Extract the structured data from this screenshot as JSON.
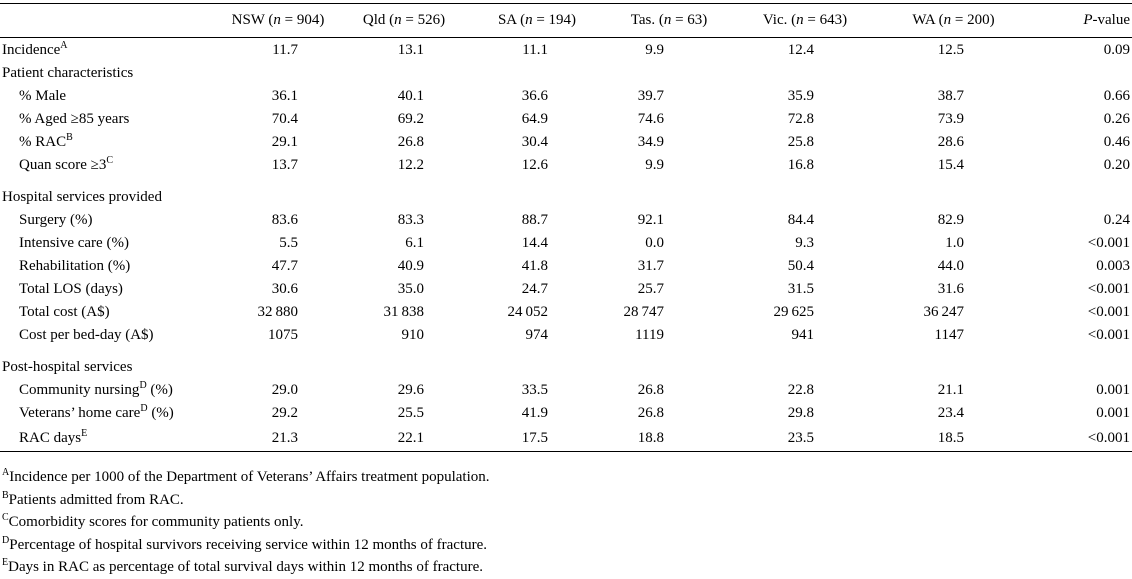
{
  "headers": [
    {
      "name": "NSW",
      "n": "904"
    },
    {
      "name": "Qld",
      "n": "526"
    },
    {
      "name": "SA",
      "n": "194"
    },
    {
      "name": "Tas.",
      "n": "63"
    },
    {
      "name": "Vic.",
      "n": "643"
    },
    {
      "name": "WA",
      "n": "200"
    }
  ],
  "n_symbol": "n",
  "eq": " = ",
  "pvalue_label": "P",
  "pvalue_suffix": "-value",
  "rows": {
    "incidence": {
      "label": "Incidence",
      "sup": "A",
      "values": [
        "11.7",
        "13.1",
        "11.1",
        "9.9",
        "12.4",
        "12.5",
        "0.09"
      ]
    },
    "patient_characteristics": {
      "label": "Patient characteristics"
    },
    "male": {
      "label": "% Male",
      "values": [
        "36.1",
        "40.1",
        "36.6",
        "39.7",
        "35.9",
        "38.7",
        "0.66"
      ]
    },
    "aged85": {
      "label": "% Aged ≥85 years",
      "values": [
        "70.4",
        "69.2",
        "64.9",
        "74.6",
        "72.8",
        "73.9",
        "0.26"
      ]
    },
    "rac": {
      "label": "% RAC",
      "sup": "B",
      "values": [
        "29.1",
        "26.8",
        "30.4",
        "34.9",
        "25.8",
        "28.6",
        "0.46"
      ]
    },
    "quan": {
      "label": "Quan score ≥3",
      "sup": "C",
      "values": [
        "13.7",
        "12.2",
        "12.6",
        "9.9",
        "16.8",
        "15.4",
        "0.20"
      ]
    },
    "hospital_services": {
      "label": "Hospital services provided"
    },
    "surgery": {
      "label": "Surgery (%)",
      "values": [
        "83.6",
        "83.3",
        "88.7",
        "92.1",
        "84.4",
        "82.9",
        "0.24"
      ]
    },
    "intensive": {
      "label": "Intensive care (%)",
      "values": [
        "5.5",
        "6.1",
        "14.4",
        "0.0",
        "9.3",
        "1.0",
        "<0.001"
      ]
    },
    "rehab": {
      "label": "Rehabilitation (%)",
      "values": [
        "47.7",
        "40.9",
        "41.8",
        "31.7",
        "50.4",
        "44.0",
        "0.003"
      ]
    },
    "los": {
      "label": "Total LOS (days)",
      "values": [
        "30.6",
        "35.0",
        "24.7",
        "25.7",
        "31.5",
        "31.6",
        "<0.001"
      ]
    },
    "cost": {
      "label": "Total cost (A$)",
      "values": [
        "32 880",
        "31 838",
        "24 052",
        "28 747",
        "29 625",
        "36 247",
        "<0.001"
      ]
    },
    "bedday": {
      "label": "Cost per bed-day (A$)",
      "values": [
        "1075",
        "910",
        "974",
        "1119",
        "941",
        "1147",
        "<0.001"
      ]
    },
    "post_hospital": {
      "label": "Post-hospital services"
    },
    "nursing": {
      "label": "Community nursing",
      "sup": "D",
      "suffix": " (%)",
      "values": [
        "29.0",
        "29.6",
        "33.5",
        "26.8",
        "22.8",
        "21.1",
        "0.001"
      ]
    },
    "veterans": {
      "label": "Veterans’ home care",
      "sup": "D",
      "suffix": " (%)",
      "values": [
        "29.2",
        "25.5",
        "41.9",
        "26.8",
        "29.8",
        "23.4",
        "0.001"
      ]
    },
    "racdays": {
      "label": "RAC days",
      "sup": "E",
      "values": [
        "21.3",
        "22.1",
        "17.5",
        "18.8",
        "23.5",
        "18.5",
        "<0.001"
      ]
    }
  },
  "footnotes": [
    {
      "mark": "A",
      "text": "Incidence per 1000 of the Department of Veterans’ Affairs treatment population."
    },
    {
      "mark": "B",
      "text": "Patients admitted from RAC."
    },
    {
      "mark": "C",
      "text": "Comorbidity scores for community patients only."
    },
    {
      "mark": "D",
      "text": "Percentage of hospital survivors receiving service within 12 months of fracture."
    },
    {
      "mark": "E",
      "text": "Days in RAC as percentage of total survival days within 12 months of fracture."
    }
  ]
}
